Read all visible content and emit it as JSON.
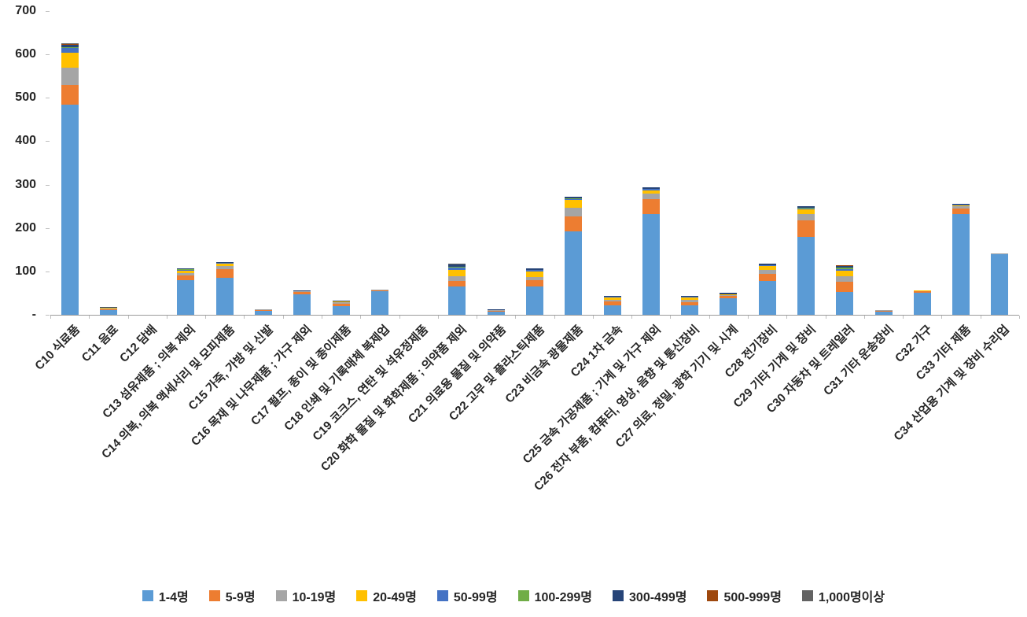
{
  "chart_data": {
    "type": "bar",
    "stacked": true,
    "title": "",
    "xlabel": "",
    "ylabel": "",
    "ylim": [
      0,
      700
    ],
    "ytick_step": 100,
    "zero_label": "-",
    "grid": false,
    "legend_position": "bottom",
    "categories": [
      "C10 식료품",
      "C11 음료",
      "C12 담배",
      "C13 섬유제품 ; 의복 제외",
      "C14 의복, 의복 액세서리 및 모피제품",
      "C15 가죽, 가방 및 신발",
      "C16 목재 및 나무제품 ; 가구 제외",
      "C17 펄프, 종이 및 종이제품",
      "C18 인쇄 및 기록매체 복제업",
      "C19 코크스, 연탄 및 석유정제품",
      "C20 화학 물질 및 화학제품 ; 의약품 제외",
      "C21 의료용 물질 및 의약품",
      "C22 고무 및 플라스틱제품",
      "C23 비금속 광물제품",
      "C24 1차 금속",
      "C25 금속 가공제품 ; 기계 및 가구 제외",
      "C26 전자 부품, 컴퓨터, 영상, 음향 및 통신장비",
      "C27 의료, 정밀, 광학 기기 및 시계",
      "C28 전기장비",
      "C29 기타 기계 및 장비",
      "C30 자동차 및 트레일러",
      "C31 기타 운송장비",
      "C32 가구",
      "C33 기타 제품",
      "C34 산업용 기계 및 장비 수리업"
    ],
    "series": [
      {
        "name": "1-4명",
        "color": "#5B9BD5",
        "values": [
          485,
          10,
          0,
          80,
          85,
          10,
          48,
          20,
          55,
          0,
          65,
          8,
          65,
          192,
          22,
          233,
          22,
          38,
          78,
          180,
          52,
          8,
          50,
          232,
          140
        ]
      },
      {
        "name": "5-9명",
        "color": "#ED7D31",
        "values": [
          45,
          3,
          0,
          10,
          20,
          1,
          4,
          6,
          2,
          0,
          13,
          2,
          14,
          35,
          8,
          33,
          7,
          5,
          16,
          38,
          25,
          1,
          4,
          12,
          1
        ]
      },
      {
        "name": "10-19명",
        "color": "#A5A5A5",
        "values": [
          40,
          2,
          0,
          6,
          8,
          1,
          2,
          3,
          1,
          0,
          10,
          1,
          8,
          20,
          5,
          13,
          5,
          3,
          9,
          14,
          12,
          1,
          2,
          6,
          1
        ]
      },
      {
        "name": "20-49명",
        "color": "#FFC000",
        "values": [
          33,
          2,
          0,
          6,
          5,
          0,
          2,
          3,
          0,
          0,
          15,
          1,
          12,
          18,
          4,
          8,
          5,
          2,
          9,
          11,
          12,
          0,
          1,
          3,
          0
        ]
      },
      {
        "name": "50-99명",
        "color": "#4472C4",
        "values": [
          12,
          0,
          0,
          2,
          2,
          0,
          0,
          0,
          0,
          0,
          5,
          0,
          4,
          3,
          2,
          3,
          2,
          0,
          2,
          3,
          5,
          0,
          0,
          1,
          0
        ]
      },
      {
        "name": "100-299명",
        "color": "#70AD47",
        "values": [
          2,
          0,
          0,
          1,
          0,
          0,
          0,
          0,
          0,
          0,
          3,
          0,
          0,
          1,
          0,
          0,
          2,
          0,
          0,
          1,
          3,
          0,
          0,
          1,
          0
        ]
      },
      {
        "name": "300-499명",
        "color": "#264478",
        "values": [
          6,
          1,
          0,
          2,
          2,
          0,
          1,
          1,
          0,
          0,
          5,
          1,
          4,
          3,
          2,
          3,
          1,
          2,
          3,
          3,
          5,
          0,
          0,
          1,
          0
        ]
      },
      {
        "name": "500-999명",
        "color": "#9E480E",
        "values": [
          1,
          0,
          0,
          0,
          0,
          0,
          0,
          0,
          0,
          0,
          0,
          0,
          0,
          0,
          0,
          0,
          0,
          0,
          0,
          0,
          1,
          0,
          0,
          0,
          0
        ]
      },
      {
        "name": "1,000명이상",
        "color": "#636363",
        "values": [
          2,
          0,
          0,
          0,
          0,
          0,
          0,
          0,
          0,
          0,
          1,
          0,
          0,
          0,
          0,
          0,
          0,
          0,
          0,
          0,
          0,
          0,
          0,
          0,
          0
        ]
      }
    ]
  }
}
